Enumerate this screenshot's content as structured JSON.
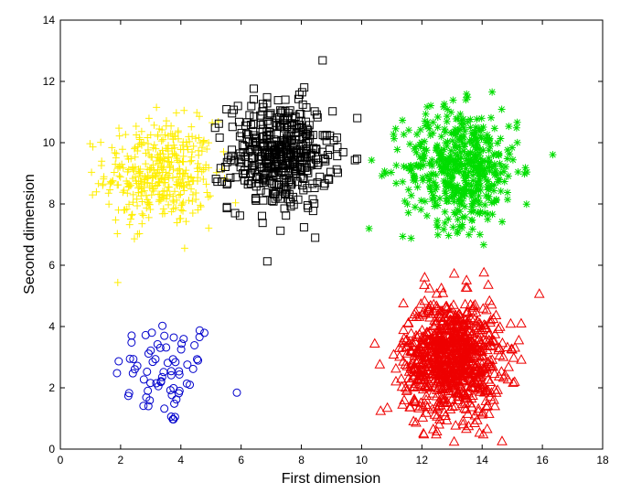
{
  "chart_data": {
    "type": "scatter",
    "title": "",
    "xlabel": "First dimension",
    "ylabel": "Second dimension",
    "xlim": [
      0,
      18
    ],
    "ylim": [
      0,
      14
    ],
    "xticks": [
      0,
      2,
      4,
      6,
      8,
      10,
      12,
      14,
      16,
      18
    ],
    "yticks": [
      0,
      2,
      4,
      6,
      8,
      10,
      12,
      14
    ],
    "grid": false,
    "legend": "none",
    "series": [
      {
        "marker": "circle",
        "color": "#0000cc",
        "center": [
          3.5,
          2.5
        ],
        "spread": [
          0.85,
          0.9
        ],
        "count": 70
      },
      {
        "marker": "plus",
        "color": "#ffee00",
        "center": [
          3.3,
          9.0
        ],
        "spread": [
          0.9,
          0.85
        ],
        "count": 400
      },
      {
        "marker": "square",
        "color": "#000000",
        "center": [
          7.3,
          9.6
        ],
        "spread": [
          0.85,
          0.9
        ],
        "count": 450
      },
      {
        "marker": "asterisk",
        "color": "#00dd00",
        "center": [
          13.3,
          9.2
        ],
        "spread": [
          0.95,
          0.95
        ],
        "count": 500
      },
      {
        "marker": "triangle",
        "color": "#ee0000",
        "center": [
          13.0,
          3.0
        ],
        "spread": [
          0.8,
          0.95
        ],
        "count": 900
      }
    ]
  }
}
